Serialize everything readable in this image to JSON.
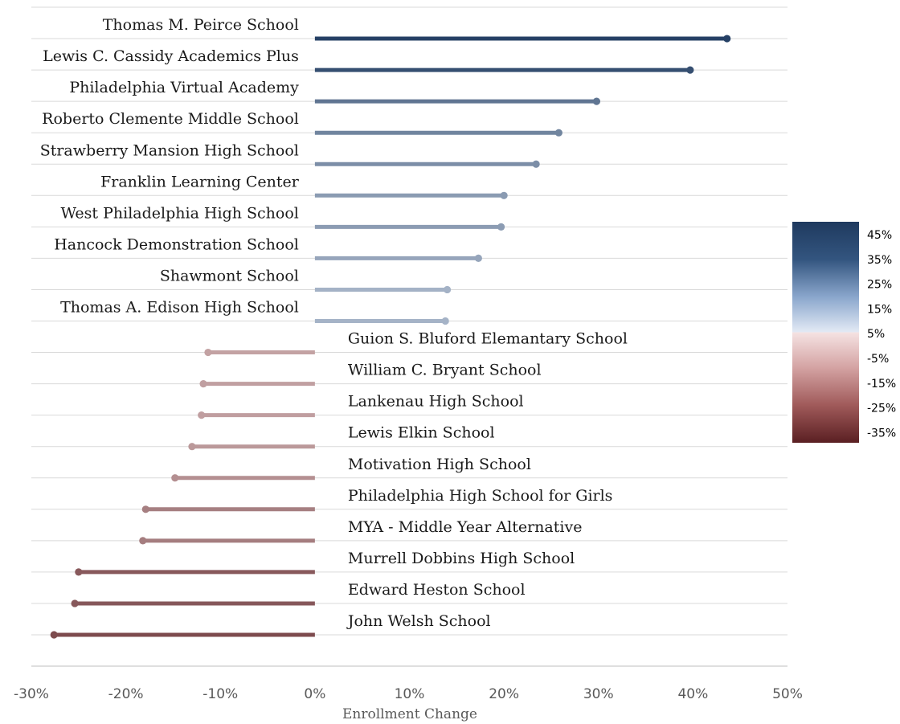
{
  "chart_data": {
    "type": "lollipop",
    "orientation": "horizontal",
    "categories": [
      "Thomas M. Peirce School",
      "Lewis C. Cassidy Academics Plus",
      "Philadelphia Virtual Academy",
      "Roberto Clemente Middle School",
      "Strawberry Mansion High School",
      "Franklin Learning Center",
      "West Philadelphia High School",
      "Hancock Demonstration School",
      "Shawmont School",
      "Thomas A. Edison High School",
      "Guion S. Bluford Elemantary School",
      "William C. Bryant School",
      "Lankenau High School",
      "Lewis Elkin School",
      "Motivation High School",
      "Philadelphia High School for Girls",
      "MYA - Middle Year Alternative",
      "Murrell Dobbins High School",
      "Edward Heston School",
      "John Welsh School"
    ],
    "values": [
      43.6,
      39.7,
      29.8,
      25.8,
      23.4,
      20.0,
      19.7,
      17.3,
      14.0,
      13.8,
      -11.3,
      -11.8,
      -12.0,
      -13.0,
      -14.8,
      -17.9,
      -18.2,
      -25.0,
      -25.4,
      -27.6
    ],
    "xlabel": "Enrollment Change",
    "xlim": [
      -30,
      50
    ],
    "xticks": [
      "-30%",
      "-20%",
      "-10%",
      "0%",
      "10%",
      "20%",
      "30%",
      "40%",
      "50%"
    ],
    "grid": "horizontal",
    "color_scale": {
      "type": "diverging",
      "colors": [
        "#5d2428",
        "#a85050",
        "#d99a98",
        "#f3dede",
        "#e0e8f4",
        "#a9c0df",
        "#6a8fc0",
        "#2f5585",
        "#1f3b60"
      ],
      "legend_labels": [
        "45%",
        "35%",
        "25%",
        "15%",
        "5%",
        "-5%",
        "-15%",
        "-25%",
        "-35%"
      ],
      "legend_position": "right"
    }
  }
}
